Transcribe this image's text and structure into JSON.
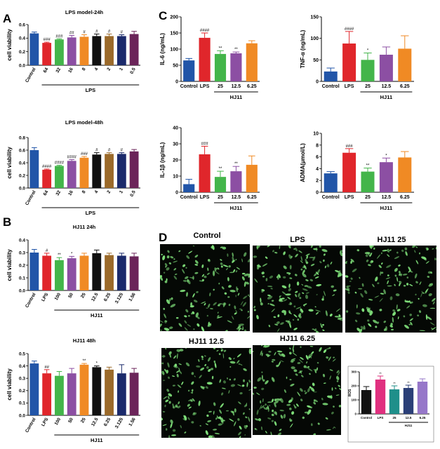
{
  "panel_letters": {
    "A": "A",
    "B": "B",
    "C": "C",
    "D": "D"
  },
  "colors": {
    "blue": "#2155a8",
    "red": "#e0262b",
    "green": "#43b54a",
    "purple": "#8c4fa3",
    "orange": "#f08a24",
    "brown": "#9b6a2a",
    "black": "#111111",
    "navy": "#1b2a6b",
    "plum": "#6b2459",
    "teal": "#1f8f8a",
    "magenta": "#e0307f",
    "slate": "#2b3f78",
    "lavender": "#9677c9",
    "cell": "#7fe07a"
  },
  "chart_data": [
    {
      "id": "A1",
      "type": "bar",
      "title": "LPS model-24h",
      "ylabel": "cell viability",
      "ylim": [
        0,
        0.6
      ],
      "yticks": [
        0.0,
        0.2,
        0.4,
        0.6
      ],
      "ytick_labels": [
        "0.0",
        "0.2",
        "0.4",
        "0.6"
      ],
      "categories": [
        "Control",
        "64",
        "32",
        "16",
        "8",
        "4",
        "2",
        "1",
        "0.5"
      ],
      "values": [
        0.47,
        0.33,
        0.38,
        0.41,
        0.42,
        0.43,
        0.43,
        0.43,
        0.46
      ],
      "errors": [
        0.02,
        0.01,
        0.01,
        0.03,
        0.03,
        0.03,
        0.03,
        0.02,
        0.04
      ],
      "colors": [
        "#2155a8",
        "#e0262b",
        "#43b54a",
        "#8c4fa3",
        "#f08a24",
        "#111111",
        "#9b6a2a",
        "#1b2a6b",
        "#6b2459"
      ],
      "annotations": [
        "",
        "###",
        "###",
        "##",
        "#",
        "#",
        "#",
        "#",
        ""
      ],
      "group_label": "LPS",
      "group_range": [
        1,
        8
      ]
    },
    {
      "id": "A2",
      "type": "bar",
      "title": "LPS model-48h",
      "ylabel": "cell viability",
      "ylim": [
        0,
        0.8
      ],
      "yticks": [
        0.0,
        0.2,
        0.4,
        0.6,
        0.8
      ],
      "ytick_labels": [
        "0.0",
        "0.2",
        "0.4",
        "0.6",
        "0.8"
      ],
      "categories": [
        "Control",
        "64",
        "32",
        "16",
        "8",
        "4",
        "2",
        "1",
        "0.5"
      ],
      "values": [
        0.6,
        0.29,
        0.35,
        0.43,
        0.48,
        0.53,
        0.54,
        0.54,
        0.58
      ],
      "errors": [
        0.04,
        0.01,
        0.01,
        0.02,
        0.02,
        0.03,
        0.02,
        0.02,
        0.03
      ],
      "colors": [
        "#2155a8",
        "#e0262b",
        "#43b54a",
        "#8c4fa3",
        "#f08a24",
        "#111111",
        "#9b6a2a",
        "#1b2a6b",
        "#6b2459"
      ],
      "annotations": [
        "",
        "####",
        "####",
        "####",
        "###",
        "#",
        "#",
        "#",
        ""
      ],
      "group_label": "LPS",
      "group_range": [
        1,
        8
      ]
    },
    {
      "id": "B1",
      "type": "bar",
      "title": "HJ11 24h",
      "ylabel": "cell viability",
      "ylim": [
        0,
        0.4
      ],
      "yticks": [
        0.0,
        0.1,
        0.2,
        0.3,
        0.4
      ],
      "ytick_labels": [
        "0.0",
        "0.1",
        "0.2",
        "0.3",
        "0.4"
      ],
      "categories": [
        "Control",
        "LPS",
        "100",
        "50",
        "25",
        "12.5",
        "6.25",
        "3.125",
        "1.56"
      ],
      "values": [
        0.3,
        0.275,
        0.24,
        0.255,
        0.275,
        0.295,
        0.28,
        0.275,
        0.27
      ],
      "errors": [
        0.025,
        0.02,
        0.02,
        0.015,
        0.02,
        0.025,
        0.015,
        0.02,
        0.025
      ],
      "colors": [
        "#2155a8",
        "#e0262b",
        "#43b54a",
        "#8c4fa3",
        "#f08a24",
        "#111111",
        "#9b6a2a",
        "#1b2a6b",
        "#6b2459"
      ],
      "annotations": [
        "",
        "#",
        "**",
        "*",
        "",
        "",
        "",
        "",
        ""
      ],
      "group_label": "HJ11",
      "group_range": [
        2,
        8
      ]
    },
    {
      "id": "B2",
      "type": "bar",
      "title": "HJ11 48h",
      "ylabel": "cell viability",
      "ylim": [
        0,
        0.5
      ],
      "yticks": [
        0.0,
        0.1,
        0.2,
        0.3,
        0.4,
        0.5
      ],
      "ytick_labels": [
        "0.0",
        "0.1",
        "0.2",
        "0.3",
        "0.4",
        "0.5"
      ],
      "categories": [
        "Control",
        "LPS",
        "100",
        "50",
        "25",
        "12.5",
        "6.25",
        "3.125",
        "1.56"
      ],
      "values": [
        0.42,
        0.34,
        0.32,
        0.34,
        0.41,
        0.39,
        0.37,
        0.34,
        0.345
      ],
      "errors": [
        0.02,
        0.03,
        0.035,
        0.04,
        0.01,
        0.01,
        0.02,
        0.07,
        0.035
      ],
      "colors": [
        "#2155a8",
        "#e0262b",
        "#43b54a",
        "#8c4fa3",
        "#f08a24",
        "#111111",
        "#9b6a2a",
        "#1b2a6b",
        "#6b2459"
      ],
      "annotations": [
        "",
        "##",
        "",
        "",
        "**",
        "*",
        "",
        "",
        ""
      ],
      "group_label": "HJ11",
      "group_range": [
        2,
        8
      ]
    },
    {
      "id": "C1",
      "type": "bar",
      "title": "",
      "ylabel": "IL-6 (ng/mL)",
      "ylim": [
        0,
        200
      ],
      "yticks": [
        0,
        50,
        100,
        150,
        200
      ],
      "ytick_labels": [
        "0",
        "50",
        "100",
        "150",
        "200"
      ],
      "categories": [
        "Control",
        "LPS",
        "25",
        "12.5",
        "6.25"
      ],
      "values": [
        65,
        135,
        85,
        87,
        118
      ],
      "errors": [
        6,
        15,
        10,
        4,
        8
      ],
      "colors": [
        "#2155a8",
        "#e0262b",
        "#43b54a",
        "#8c4fa3",
        "#f08a24"
      ],
      "annotations": [
        "",
        "####",
        "**",
        "**",
        ""
      ],
      "group_label": "HJ11",
      "group_range": [
        2,
        4
      ]
    },
    {
      "id": "C2",
      "type": "bar",
      "title": "",
      "ylabel": "TNF-α (ng/mL)",
      "ylim": [
        0,
        150
      ],
      "yticks": [
        0,
        50,
        100,
        150
      ],
      "ytick_labels": [
        "0",
        "50",
        "100",
        "150"
      ],
      "categories": [
        "Control",
        "LPS",
        "25",
        "12.5",
        "6.25"
      ],
      "values": [
        23,
        88,
        50,
        62,
        76
      ],
      "errors": [
        8,
        28,
        16,
        18,
        30
      ],
      "colors": [
        "#2155a8",
        "#e0262b",
        "#43b54a",
        "#8c4fa3",
        "#f08a24"
      ],
      "annotations": [
        "",
        "####",
        "*",
        "",
        ""
      ],
      "group_label": "HJ11",
      "group_range": [
        2,
        4
      ]
    },
    {
      "id": "C3",
      "type": "bar",
      "title": "",
      "ylabel": "IL-1β (ng/mL)",
      "ylim": [
        0,
        40
      ],
      "yticks": [
        0,
        10,
        20,
        30,
        40
      ],
      "ytick_labels": [
        "0",
        "10",
        "20",
        "30",
        "40"
      ],
      "categories": [
        "Control",
        "LPS",
        "25",
        "12.5",
        "6.25"
      ],
      "values": [
        5,
        23.5,
        9.5,
        13,
        17
      ],
      "errors": [
        3,
        5,
        3.5,
        3,
        5.5
      ],
      "colors": [
        "#2155a8",
        "#e0262b",
        "#43b54a",
        "#8c4fa3",
        "#f08a24"
      ],
      "annotations": [
        "",
        "###",
        "**",
        "**",
        ""
      ],
      "group_label": "HJ11",
      "group_range": [
        2,
        4
      ]
    },
    {
      "id": "C4",
      "type": "bar",
      "title": "",
      "ylabel": "ADMA(μmol/L)",
      "ylim": [
        0,
        10
      ],
      "yticks": [
        0,
        2,
        4,
        6,
        8,
        10
      ],
      "ytick_labels": [
        "0",
        "2",
        "4",
        "6",
        "8",
        "10"
      ],
      "categories": [
        "Control",
        "LPS",
        "25",
        "12.5",
        "6.25"
      ],
      "values": [
        3.2,
        6.7,
        3.5,
        5.1,
        5.9
      ],
      "errors": [
        0.3,
        0.7,
        0.6,
        0.7,
        1.0
      ],
      "colors": [
        "#2155a8",
        "#e0262b",
        "#43b54a",
        "#8c4fa3",
        "#f08a24"
      ],
      "annotations": [
        "",
        "###",
        "**",
        "*",
        ""
      ],
      "group_label": "HJ11",
      "group_range": [
        2,
        4
      ]
    },
    {
      "id": "D_ros",
      "type": "bar",
      "title": "",
      "ylabel": "ROS",
      "ylim": [
        0,
        300
      ],
      "yticks": [
        0,
        100,
        200,
        300
      ],
      "ytick_labels": [
        "0",
        "100",
        "200",
        "300"
      ],
      "categories": [
        "Control",
        "LPS",
        "25",
        "12.5",
        "6.25"
      ],
      "values": [
        170,
        245,
        175,
        185,
        230
      ],
      "errors": [
        25,
        25,
        25,
        20,
        20
      ],
      "colors": [
        "#111111",
        "#e0307f",
        "#1f8f8a",
        "#2b3f78",
        "#9677c9"
      ],
      "annotations": [
        "",
        "**",
        "**",
        "**",
        ""
      ],
      "group_label": "HJ11",
      "group_range": [
        2,
        4
      ]
    }
  ],
  "micrographs": [
    {
      "label": "Control",
      "seed": 11
    },
    {
      "label": "LPS",
      "seed": 23
    },
    {
      "label": "HJ11 25",
      "seed": 37
    },
    {
      "label": "HJ11 12.5",
      "seed": 41
    },
    {
      "label": "HJ11 6.25",
      "seed": 59
    }
  ]
}
